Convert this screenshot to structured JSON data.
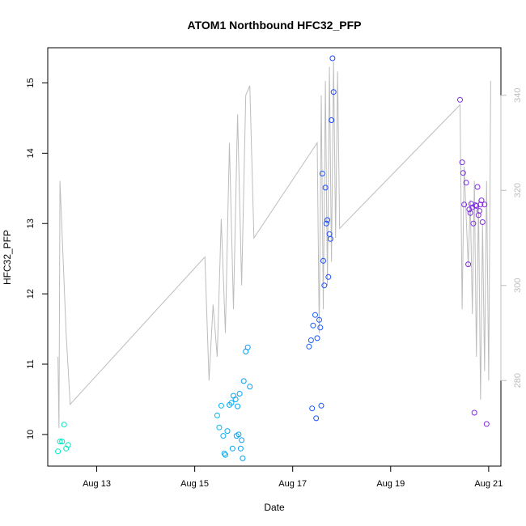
{
  "chart_data": {
    "type": "scatter",
    "title": "ATOM1 Northbound HFC32_PFP",
    "xlabel": "Date",
    "ylabel": "HFC32_PFP",
    "x_ticks": [
      "Aug 13",
      "Aug 15",
      "Aug 17",
      "Aug 19",
      "Aug 21"
    ],
    "y_ticks": [
      "10",
      "11",
      "12",
      "13",
      "14",
      "15"
    ],
    "y2_ticks": [
      "280",
      "300",
      "320",
      "340"
    ],
    "xlim": [
      "2016-08-12 00:00",
      "2016-08-21 06:00"
    ],
    "ylim": [
      9.55,
      15.5
    ],
    "y2lim": [
      262,
      350
    ],
    "grid": false,
    "colors": {
      "line": "#bdbdbd",
      "right_axis": "#bdbdbd",
      "points": [
        "#00e8c0",
        "#00c8f0",
        "#1e3cff",
        "#8a2be2"
      ]
    },
    "series": [
      {
        "values": [
          [
            "2016-08-12 06:00",
            9.9
          ],
          [
            "2016-08-12 07:00",
            9.9
          ],
          [
            "2016-08-12 08:00",
            10.14
          ],
          [
            "2016-08-12 10:00",
            9.85
          ],
          [
            "2016-08-12 09:00",
            9.8
          ],
          [
            "2016-08-12 05:00",
            9.76
          ],
          [
            "2016-08-15 11:00",
            10.27
          ],
          [
            "2016-08-15 12:00",
            10.1
          ],
          [
            "2016-08-15 13:00",
            10.41
          ],
          [
            "2016-08-15 14:00",
            9.98
          ],
          [
            "2016-08-15 14:30",
            9.73
          ],
          [
            "2016-08-15 15:00",
            9.71
          ],
          [
            "2016-08-15 16:00",
            10.05
          ],
          [
            "2016-08-15 17:00",
            10.42
          ],
          [
            "2016-08-15 18:00",
            10.45
          ],
          [
            "2016-08-15 18:30",
            9.8
          ],
          [
            "2016-08-15 19:00",
            10.55
          ],
          [
            "2016-08-15 20:00",
            10.5
          ],
          [
            "2016-08-15 20:30",
            9.98
          ],
          [
            "2016-08-15 21:00",
            10.4
          ],
          [
            "2016-08-15 21:30",
            10.0
          ],
          [
            "2016-08-15 22:00",
            10.58
          ],
          [
            "2016-08-15 22:30",
            9.8
          ],
          [
            "2016-08-15 23:00",
            9.92
          ],
          [
            "2016-08-15 23:30",
            9.66
          ],
          [
            "2016-08-16 00:00",
            10.76
          ],
          [
            "2016-08-16 01:00",
            11.18
          ],
          [
            "2016-08-16 02:00",
            11.24
          ],
          [
            "2016-08-16 03:00",
            10.68
          ]
        ]
      },
      {
        "values": [
          [
            "2016-08-17 08:00",
            11.25
          ],
          [
            "2016-08-17 09:00",
            11.34
          ],
          [
            "2016-08-17 09:30",
            10.37
          ],
          [
            "2016-08-17 10:00",
            11.55
          ],
          [
            "2016-08-17 11:00",
            11.7
          ],
          [
            "2016-08-17 11:30",
            10.23
          ],
          [
            "2016-08-17 12:00",
            11.37
          ],
          [
            "2016-08-17 13:00",
            11.63
          ],
          [
            "2016-08-17 13:30",
            11.52
          ],
          [
            "2016-08-17 14:00",
            10.41
          ],
          [
            "2016-08-17 14:30",
            13.71
          ],
          [
            "2016-08-17 15:00",
            12.47
          ],
          [
            "2016-08-17 15:30",
            12.12
          ],
          [
            "2016-08-17 16:00",
            13.51
          ],
          [
            "2016-08-17 16:30",
            13.0
          ],
          [
            "2016-08-17 17:00",
            13.05
          ],
          [
            "2016-08-17 17:30",
            12.24
          ],
          [
            "2016-08-17 18:00",
            12.85
          ],
          [
            "2016-08-17 18:30",
            12.78
          ],
          [
            "2016-08-17 19:00",
            14.47
          ],
          [
            "2016-08-17 19:30",
            15.35
          ],
          [
            "2016-08-17 20:00",
            14.87
          ]
        ]
      },
      {
        "values": [
          [
            "2016-08-20 10:00",
            14.76
          ],
          [
            "2016-08-20 11:00",
            13.87
          ],
          [
            "2016-08-20 11:30",
            13.72
          ],
          [
            "2016-08-20 12:00",
            13.27
          ],
          [
            "2016-08-20 13:00",
            13.58
          ],
          [
            "2016-08-20 14:00",
            12.42
          ],
          [
            "2016-08-20 14:30",
            13.2
          ],
          [
            "2016-08-20 15:00",
            13.15
          ],
          [
            "2016-08-20 15:30",
            13.28
          ],
          [
            "2016-08-20 16:00",
            13.23
          ],
          [
            "2016-08-20 16:30",
            13.0
          ],
          [
            "2016-08-20 17:00",
            10.31
          ],
          [
            "2016-08-20 17:30",
            13.26
          ],
          [
            "2016-08-20 18:00",
            13.25
          ],
          [
            "2016-08-20 18:30",
            13.52
          ],
          [
            "2016-08-20 19:00",
            13.12
          ],
          [
            "2016-08-20 19:30",
            13.18
          ],
          [
            "2016-08-20 20:00",
            13.27
          ],
          [
            "2016-08-20 20:30",
            13.33
          ],
          [
            "2016-08-20 21:00",
            13.02
          ],
          [
            "2016-08-20 22:00",
            13.27
          ],
          [
            "2016-08-20 23:00",
            10.15
          ]
        ]
      }
    ],
    "background_line": {
      "values": [
        [
          "2016-08-12 05:00",
          285
        ],
        [
          "2016-08-12 05:30",
          270
        ],
        [
          "2016-08-12 06:00",
          322
        ],
        [
          "2016-08-12 09:00",
          290
        ],
        [
          "2016-08-12 11:00",
          275
        ],
        [
          "2016-08-15 05:00",
          306
        ],
        [
          "2016-08-15 07:00",
          280
        ],
        [
          "2016-08-15 09:00",
          296
        ],
        [
          "2016-08-15 11:00",
          285
        ],
        [
          "2016-08-15 13:00",
          314
        ],
        [
          "2016-08-15 15:00",
          290
        ],
        [
          "2016-08-15 17:00",
          330
        ],
        [
          "2016-08-15 19:00",
          295
        ],
        [
          "2016-08-15 21:00",
          336
        ],
        [
          "2016-08-15 23:00",
          300
        ],
        [
          "2016-08-16 01:00",
          340
        ],
        [
          "2016-08-16 03:00",
          342
        ],
        [
          "2016-08-16 05:00",
          310
        ],
        [
          "2016-08-17 12:00",
          330
        ],
        [
          "2016-08-17 13:00",
          290
        ],
        [
          "2016-08-17 14:00",
          340
        ],
        [
          "2016-08-17 15:00",
          295
        ],
        [
          "2016-08-17 16:00",
          343
        ],
        [
          "2016-08-17 17:00",
          300
        ],
        [
          "2016-08-17 18:00",
          346
        ],
        [
          "2016-08-17 19:00",
          305
        ],
        [
          "2016-08-17 20:00",
          347
        ],
        [
          "2016-08-17 21:00",
          310
        ],
        [
          "2016-08-17 22:00",
          345
        ],
        [
          "2016-08-17 23:00",
          312
        ],
        [
          "2016-08-20 10:00",
          338
        ],
        [
          "2016-08-20 11:00",
          295
        ],
        [
          "2016-08-20 12:00",
          325
        ],
        [
          "2016-08-20 14:00",
          304
        ],
        [
          "2016-08-20 15:00",
          318
        ],
        [
          "2016-08-20 16:00",
          294
        ],
        [
          "2016-08-20 17:00",
          322
        ],
        [
          "2016-08-20 18:00",
          285
        ],
        [
          "2016-08-20 19:00",
          318
        ],
        [
          "2016-08-20 20:00",
          276
        ],
        [
          "2016-08-20 21:00",
          313
        ],
        [
          "2016-08-20 22:00",
          282
        ],
        [
          "2016-08-20 23:00",
          322
        ],
        [
          "2016-08-21 00:00",
          280
        ],
        [
          "2016-08-21 01:00",
          343
        ]
      ]
    }
  }
}
